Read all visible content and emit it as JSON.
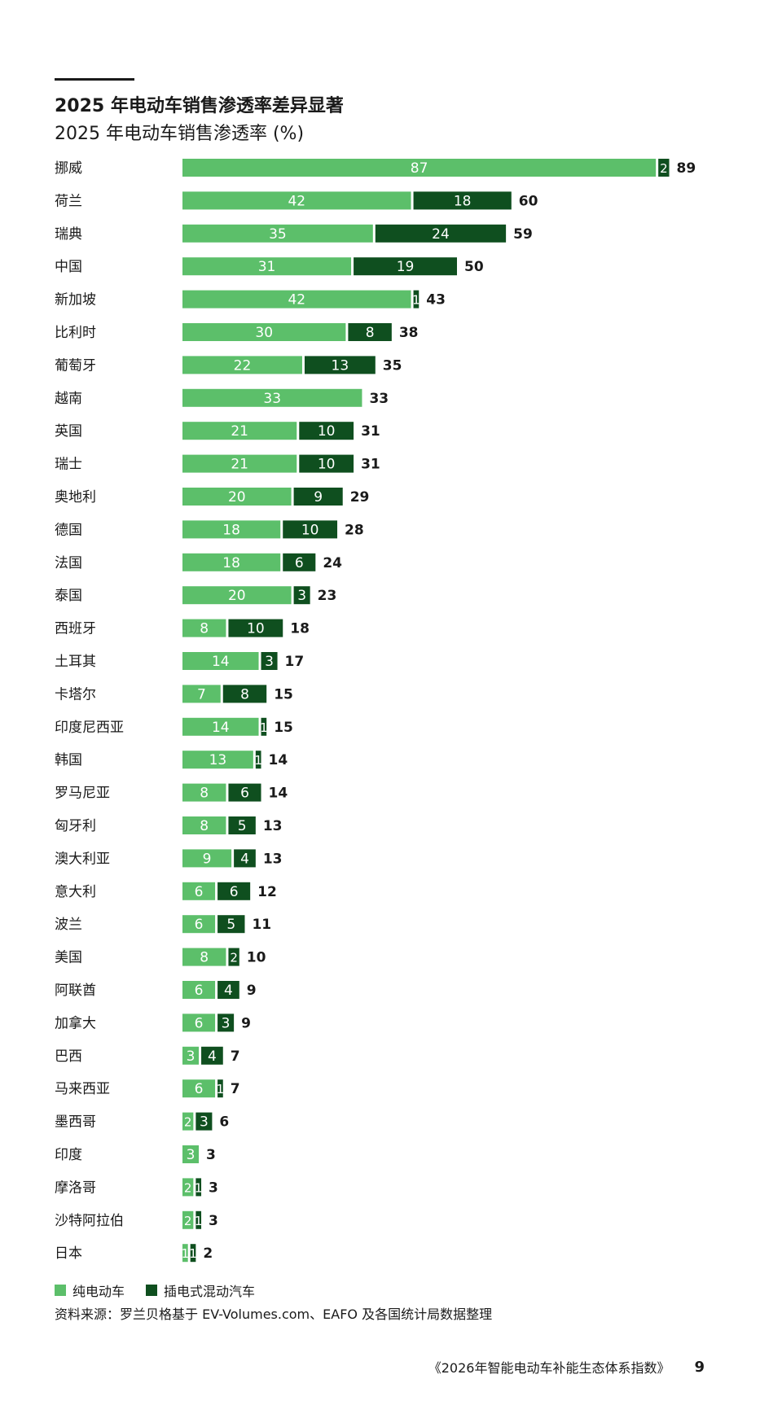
{
  "title": "2025 年电动车销售渗透率差异显著",
  "subtitle": "2025 年电动车销售渗透率 (%)",
  "colors": {
    "bev": "#5cbf6a",
    "phev": "#0f4f1f",
    "text": "#1a1a1a",
    "bar_label": "#ffffff"
  },
  "chart_data": {
    "type": "bar",
    "orientation": "horizontal",
    "stacked": true,
    "categories": [
      "挪威",
      "荷兰",
      "瑞典",
      "中国",
      "新加坡",
      "比利时",
      "葡萄牙",
      "越南",
      "英国",
      "瑞士",
      "奥地利",
      "德国",
      "法国",
      "泰国",
      "西班牙",
      "土耳其",
      "卡塔尔",
      "印度尼西亚",
      "韩国",
      "罗马尼亚",
      "匈牙利",
      "澳大利亚",
      "意大利",
      "波兰",
      "美国",
      "阿联酋",
      "加拿大",
      "巴西",
      "马来西亚",
      "墨西哥",
      "印度",
      "摩洛哥",
      "沙特阿拉伯",
      "日本"
    ],
    "series": [
      {
        "name": "纯电动车",
        "values": [
          87,
          42,
          35,
          31,
          42,
          30,
          22,
          33,
          21,
          21,
          20,
          18,
          18,
          20,
          8,
          14,
          7,
          14,
          13,
          8,
          8,
          9,
          6,
          6,
          8,
          6,
          6,
          3,
          6,
          2,
          3,
          2,
          2,
          1
        ]
      },
      {
        "name": "插电式混动汽车",
        "values": [
          2,
          18,
          24,
          19,
          1,
          8,
          13,
          0,
          10,
          10,
          9,
          10,
          6,
          3,
          10,
          3,
          8,
          1,
          1,
          6,
          5,
          4,
          6,
          5,
          2,
          4,
          3,
          4,
          1,
          3,
          0,
          1,
          1,
          1
        ]
      }
    ],
    "totals": [
      89,
      60,
      59,
      50,
      43,
      38,
      35,
      33,
      31,
      31,
      29,
      28,
      24,
      23,
      18,
      17,
      15,
      15,
      14,
      14,
      13,
      13,
      12,
      11,
      10,
      9,
      9,
      7,
      7,
      6,
      3,
      3,
      3,
      2
    ],
    "xlim": [
      0,
      89
    ],
    "grid": false,
    "legend_position": "bottom-left",
    "title": "2025 年电动车销售渗透率 (%)"
  },
  "legend": {
    "bev_label": "纯电动车",
    "phev_label": "插电式混动汽车"
  },
  "source": "资料来源：罗兰贝格基于 EV-Volumes.com、EAFO 及各国统计局数据整理",
  "footer": {
    "publication": "《2026年智能电动车补能生态体系指数》",
    "page_number": "9"
  }
}
